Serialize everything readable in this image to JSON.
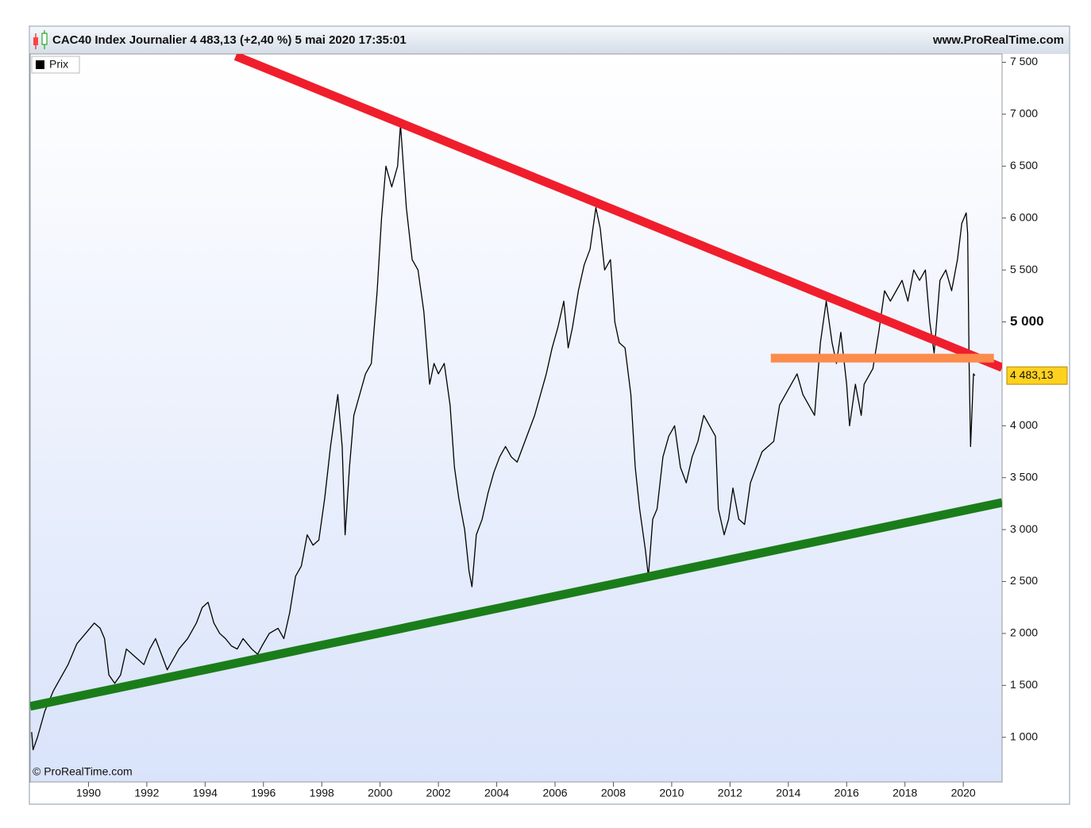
{
  "chart_data": {
    "type": "line",
    "title": "CAC40 Index Journalier 4 483,13 (+2,40 %) 5 mai 2020 17:35:01",
    "source": "www.ProRealTime.com",
    "copyright": "© ProRealTime.com",
    "legend": "Prix",
    "last_value": {
      "value": 4483.13,
      "label": "4 483,13"
    },
    "xlim": [
      1988,
      2021.33
    ],
    "ylim": [
      570,
      7580
    ],
    "xticks": [
      1990,
      1992,
      1994,
      1996,
      1998,
      2000,
      2002,
      2004,
      2006,
      2008,
      2010,
      2012,
      2014,
      2016,
      2018,
      2020
    ],
    "yticks": [
      {
        "value": 1000,
        "label": "1 000"
      },
      {
        "value": 1500,
        "label": "1 500"
      },
      {
        "value": 2000,
        "label": "2 000"
      },
      {
        "value": 2500,
        "label": "2 500"
      },
      {
        "value": 3000,
        "label": "3 000"
      },
      {
        "value": 3500,
        "label": "3 500"
      },
      {
        "value": 4000,
        "label": "4 000"
      },
      {
        "value": 5000,
        "label": "5 000",
        "bold": true
      },
      {
        "value": 5500,
        "label": "5 500"
      },
      {
        "value": 6000,
        "label": "6 000"
      },
      {
        "value": 6500,
        "label": "6 500"
      },
      {
        "value": 7000,
        "label": "7 000"
      },
      {
        "value": 7500,
        "label": "7 500"
      }
    ],
    "series": [
      {
        "color": "#000000",
        "x": [
          1988.05,
          1988.1,
          1988.25,
          1988.5,
          1988.8,
          1989.0,
          1989.3,
          1989.6,
          1989.9,
          1990.2,
          1990.4,
          1990.55,
          1990.7,
          1990.9,
          1991.1,
          1991.3,
          1991.5,
          1991.7,
          1991.9,
          1992.1,
          1992.3,
          1992.5,
          1992.7,
          1992.9,
          1993.1,
          1993.4,
          1993.7,
          1993.9,
          1994.1,
          1994.3,
          1994.5,
          1994.7,
          1994.9,
          1995.1,
          1995.3,
          1995.6,
          1995.8,
          1995.95,
          1996.2,
          1996.5,
          1996.7,
          1996.9,
          1997.1,
          1997.3,
          1997.5,
          1997.7,
          1997.9,
          1998.1,
          1998.3,
          1998.55,
          1998.7,
          1998.8,
          1998.95,
          1999.1,
          1999.3,
          1999.5,
          1999.7,
          1999.9,
          2000.05,
          2000.2,
          2000.4,
          2000.6,
          2000.7,
          2000.9,
          2001.1,
          2001.3,
          2001.5,
          2001.7,
          2001.85,
          2002.0,
          2002.2,
          2002.4,
          2002.55,
          2002.7,
          2002.9,
          2003.05,
          2003.15,
          2003.3,
          2003.5,
          2003.7,
          2003.9,
          2004.1,
          2004.3,
          2004.5,
          2004.7,
          2004.9,
          2005.1,
          2005.3,
          2005.5,
          2005.7,
          2005.9,
          2006.1,
          2006.3,
          2006.45,
          2006.6,
          2006.8,
          2007.0,
          2007.2,
          2007.4,
          2007.55,
          2007.7,
          2007.9,
          2008.05,
          2008.2,
          2008.4,
          2008.6,
          2008.75,
          2008.9,
          2009.1,
          2009.2,
          2009.35,
          2009.5,
          2009.7,
          2009.9,
          2010.1,
          2010.3,
          2010.5,
          2010.7,
          2010.9,
          2011.1,
          2011.3,
          2011.5,
          2011.6,
          2011.8,
          2011.95,
          2012.1,
          2012.3,
          2012.5,
          2012.7,
          2012.9,
          2013.1,
          2013.3,
          2013.5,
          2013.7,
          2013.9,
          2014.1,
          2014.3,
          2014.5,
          2014.7,
          2014.9,
          2015.1,
          2015.3,
          2015.5,
          2015.65,
          2015.8,
          2016.0,
          2016.1,
          2016.3,
          2016.5,
          2016.6,
          2016.9,
          2017.1,
          2017.3,
          2017.5,
          2017.7,
          2017.9,
          2018.1,
          2018.3,
          2018.5,
          2018.7,
          2018.85,
          2019.0,
          2019.2,
          2019.4,
          2019.6,
          2019.8,
          2019.95,
          2020.1,
          2020.15,
          2020.2,
          2020.25,
          2020.35,
          2020.4
        ],
        "values": [
          1050,
          880,
          1000,
          1250,
          1450,
          1550,
          1700,
          1900,
          2000,
          2100,
          2050,
          1950,
          1600,
          1520,
          1600,
          1850,
          1800,
          1750,
          1700,
          1850,
          1950,
          1800,
          1650,
          1750,
          1850,
          1950,
          2100,
          2250,
          2300,
          2100,
          2000,
          1950,
          1880,
          1850,
          1950,
          1850,
          1800,
          1880,
          2000,
          2050,
          1950,
          2200,
          2550,
          2650,
          2950,
          2850,
          2900,
          3300,
          3800,
          4300,
          3800,
          2950,
          3600,
          4100,
          4300,
          4500,
          4600,
          5300,
          6000,
          6500,
          6300,
          6500,
          6900,
          6100,
          5600,
          5500,
          5100,
          4400,
          4600,
          4500,
          4600,
          4200,
          3600,
          3300,
          3000,
          2600,
          2450,
          2950,
          3100,
          3350,
          3550,
          3700,
          3800,
          3700,
          3650,
          3800,
          3950,
          4100,
          4300,
          4500,
          4750,
          4950,
          5200,
          4750,
          4950,
          5300,
          5550,
          5700,
          6100,
          5900,
          5500,
          5600,
          5000,
          4800,
          4750,
          4300,
          3600,
          3200,
          2800,
          2550,
          3100,
          3200,
          3700,
          3900,
          4000,
          3600,
          3450,
          3700,
          3850,
          4100,
          4000,
          3900,
          3200,
          2950,
          3100,
          3400,
          3100,
          3050,
          3450,
          3600,
          3750,
          3800,
          3850,
          4200,
          4300,
          4400,
          4500,
          4300,
          4200,
          4100,
          4800,
          5200,
          4800,
          4600,
          4900,
          4400,
          4000,
          4400,
          4100,
          4400,
          4550,
          4900,
          5300,
          5200,
          5300,
          5400,
          5200,
          5500,
          5400,
          5500,
          5000,
          4700,
          5400,
          5500,
          5300,
          5600,
          5950,
          6050,
          5850,
          4600,
          3800,
          4500,
          4483.13
        ]
      }
    ],
    "lines": [
      {
        "color": "#f01e2c",
        "x": [
          1995.05,
          2021.33
        ],
        "values": [
          7560,
          4560
        ]
      },
      {
        "color": "#1a7d1a",
        "x": [
          1988,
          2021.33
        ],
        "values": [
          1298,
          3261
        ]
      },
      {
        "color": "#fb8c4c",
        "x": [
          2013.4,
          2021.05
        ],
        "values": [
          4651,
          4651
        ]
      }
    ]
  }
}
